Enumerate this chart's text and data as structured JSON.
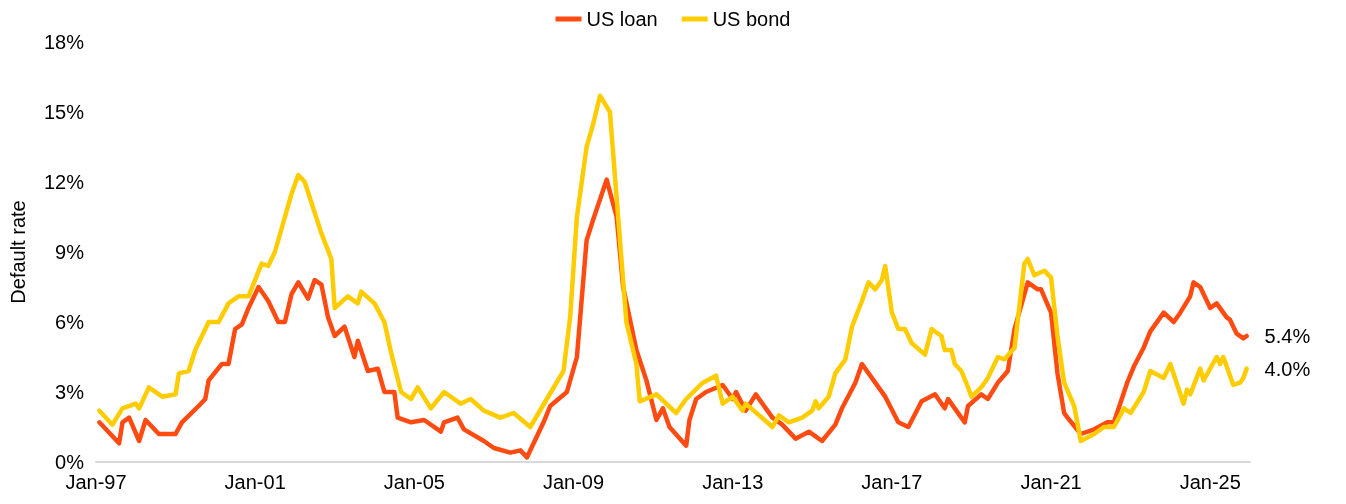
{
  "chart_data": {
    "type": "line",
    "ylabel": "Default rate",
    "legend": "top",
    "grid": false,
    "xlim": [
      "1997-01",
      "2026-01"
    ],
    "xticks": [
      {
        "value": "1997-01",
        "label": "Jan-97"
      },
      {
        "value": "2001-01",
        "label": "Jan-01"
      },
      {
        "value": "2005-01",
        "label": "Jan-05"
      },
      {
        "value": "2009-01",
        "label": "Jan-09"
      },
      {
        "value": "2013-01",
        "label": "Jan-13"
      },
      {
        "value": "2017-01",
        "label": "Jan-17"
      },
      {
        "value": "2021-01",
        "label": "Jan-21"
      },
      {
        "value": "2025-01",
        "label": "Jan-25"
      }
    ],
    "ylim": [
      0,
      18
    ],
    "yticks": [
      {
        "value": 0,
        "label": "0%"
      },
      {
        "value": 3,
        "label": "3%"
      },
      {
        "value": 6,
        "label": "6%"
      },
      {
        "value": 9,
        "label": "9%"
      },
      {
        "value": 12,
        "label": "12%"
      },
      {
        "value": 15,
        "label": "15%"
      },
      {
        "value": 18,
        "label": "18%"
      }
    ],
    "series": [
      {
        "name": "US loan",
        "color": "#ff4b12",
        "x": [
          "1997-02",
          "1997-08",
          "1997-09",
          "1997-11",
          "1998-02",
          "1998-04",
          "1998-08",
          "1999-01",
          "1999-03",
          "1999-08",
          "1999-10",
          "1999-11",
          "2000-03",
          "2000-05",
          "2000-07",
          "2000-09",
          "2000-11",
          "2001-02",
          "2001-05",
          "2001-08",
          "2001-10",
          "2001-12",
          "2002-02",
          "2002-05",
          "2002-07",
          "2002-09",
          "2002-11",
          "2003-01",
          "2003-04",
          "2003-07",
          "2003-08",
          "2003-11",
          "2004-02",
          "2004-04",
          "2004-07",
          "2004-08",
          "2004-12",
          "2005-04",
          "2005-09",
          "2005-10",
          "2006-02",
          "2006-04",
          "2006-10",
          "2007-01",
          "2007-06",
          "2007-09",
          "2007-11",
          "2008-04",
          "2008-06",
          "2008-11",
          "2009-02",
          "2009-05",
          "2009-07",
          "2009-11",
          "2010-02",
          "2010-04",
          "2010-08",
          "2010-11",
          "2011-02",
          "2011-04",
          "2011-06",
          "2011-11",
          "2011-12",
          "2012-02",
          "2012-05",
          "2012-10",
          "2013-01",
          "2013-02",
          "2013-05",
          "2013-08",
          "2014-01",
          "2014-04",
          "2014-08",
          "2014-12",
          "2015-04",
          "2015-08",
          "2015-10",
          "2016-02",
          "2016-04",
          "2016-08",
          "2016-11",
          "2017-03",
          "2017-06",
          "2017-10",
          "2018-02",
          "2018-05",
          "2018-06",
          "2018-08",
          "2018-11",
          "2018-12",
          "2019-04",
          "2019-06",
          "2019-09",
          "2019-12",
          "2020-02",
          "2020-06",
          "2020-09",
          "2020-10",
          "2021-01",
          "2021-03",
          "2021-05",
          "2021-06",
          "2021-10",
          "2022-02",
          "2022-06",
          "2022-08",
          "2022-12",
          "2023-02",
          "2023-05",
          "2023-07",
          "2023-11",
          "2024-02",
          "2024-04",
          "2024-07",
          "2024-08",
          "2024-10",
          "2025-01",
          "2025-03",
          "2025-06",
          "2025-07",
          "2025-09",
          "2025-11",
          "2025-12"
        ],
        "values": [
          1.7,
          0.8,
          1.7,
          1.9,
          0.9,
          1.8,
          1.2,
          1.2,
          1.7,
          2.4,
          2.7,
          3.5,
          4.2,
          4.2,
          5.7,
          5.9,
          6.6,
          7.5,
          6.9,
          6.0,
          6.0,
          7.2,
          7.7,
          7.0,
          7.8,
          7.6,
          6.2,
          5.4,
          5.8,
          4.5,
          5.2,
          3.9,
          4.0,
          3.0,
          3.0,
          1.9,
          1.7,
          1.8,
          1.3,
          1.7,
          1.9,
          1.4,
          0.9,
          0.6,
          0.4,
          0.5,
          0.2,
          1.7,
          2.4,
          3.0,
          4.5,
          9.5,
          10.4,
          12.1,
          10.5,
          7.5,
          4.8,
          3.5,
          1.8,
          2.3,
          1.5,
          0.7,
          1.8,
          2.7,
          3.0,
          3.3,
          2.7,
          3.0,
          2.2,
          2.9,
          1.9,
          1.6,
          1.0,
          1.3,
          0.9,
          1.6,
          2.3,
          3.4,
          4.2,
          3.4,
          2.8,
          1.7,
          1.5,
          2.6,
          2.9,
          2.3,
          2.7,
          2.3,
          1.7,
          2.4,
          2.9,
          2.7,
          3.4,
          3.9,
          5.7,
          7.7,
          7.4,
          7.4,
          6.4,
          3.8,
          2.1,
          1.9,
          1.2,
          1.4,
          1.7,
          1.7,
          3.4,
          4.1,
          4.9,
          5.6,
          6.4,
          6.0,
          6.4,
          7.1,
          7.7,
          7.5,
          6.6,
          6.8,
          6.2,
          6.1,
          5.5,
          5.3,
          5.4
        ],
        "value_labels": [
          null,
          null,
          null,
          null,
          null,
          null,
          null,
          null,
          null,
          null,
          null,
          null,
          null,
          null,
          null,
          null,
          null,
          null,
          null,
          null,
          null,
          null,
          null,
          null,
          null,
          null,
          null,
          null,
          null,
          null,
          null,
          null,
          null,
          null,
          null,
          null,
          null,
          null,
          null,
          null,
          null,
          null,
          null,
          null,
          null,
          null,
          null,
          null,
          null,
          null,
          null,
          null,
          null,
          null,
          null,
          null,
          null,
          null,
          null,
          null,
          null,
          null,
          null,
          null,
          null,
          null,
          null,
          null,
          null,
          null,
          null,
          null,
          null,
          null,
          null,
          null,
          null,
          null,
          null,
          null,
          null,
          null,
          null,
          null,
          null,
          null,
          null,
          null,
          null,
          null,
          null,
          null,
          null,
          null,
          null,
          null,
          null,
          null,
          null,
          null,
          null,
          null,
          null,
          null,
          null,
          null,
          null,
          null,
          null,
          null,
          null,
          null,
          null,
          null,
          null,
          null,
          null,
          null,
          null,
          null,
          null,
          null,
          "5.4%"
        ]
      },
      {
        "name": "US bond",
        "color": "#ffcc00",
        "x": [
          "1997-02",
          "1997-06",
          "1997-09",
          "1998-01",
          "1998-02",
          "1998-05",
          "1998-09",
          "1999-01",
          "1999-02",
          "1999-05",
          "1999-07",
          "1999-11",
          "2000-02",
          "2000-05",
          "2000-08",
          "2000-11",
          "2001-03",
          "2001-05",
          "2001-07",
          "2001-10",
          "2001-12",
          "2002-02",
          "2002-04",
          "2002-09",
          "2002-12",
          "2003-01",
          "2003-05",
          "2003-08",
          "2003-09",
          "2004-01",
          "2004-04",
          "2004-06",
          "2004-09",
          "2004-12",
          "2005-02",
          "2005-06",
          "2005-10",
          "2006-03",
          "2006-06",
          "2006-10",
          "2007-03",
          "2007-07",
          "2007-12",
          "2008-05",
          "2008-10",
          "2008-12",
          "2009-02",
          "2009-05",
          "2009-07",
          "2009-09",
          "2009-12",
          "2010-05",
          "2010-08",
          "2010-09",
          "2011-02",
          "2011-08",
          "2011-11",
          "2012-04",
          "2012-08",
          "2012-10",
          "2013-01",
          "2013-04",
          "2013-05",
          "2013-09",
          "2014-01",
          "2014-03",
          "2014-06",
          "2014-10",
          "2015-01",
          "2015-02",
          "2015-03",
          "2015-06",
          "2015-08",
          "2015-11",
          "2016-01",
          "2016-04",
          "2016-06",
          "2016-08",
          "2016-10",
          "2016-11",
          "2017-01",
          "2017-03",
          "2017-05",
          "2017-07",
          "2017-11",
          "2018-01",
          "2018-04",
          "2018-05",
          "2018-07",
          "2018-08",
          "2018-10",
          "2018-12",
          "2019-01",
          "2019-04",
          "2019-06",
          "2019-09",
          "2019-11",
          "2020-02",
          "2020-05",
          "2020-06",
          "2020-08",
          "2020-11",
          "2021-01",
          "2021-03",
          "2021-05",
          "2021-08",
          "2021-10",
          "2022-02",
          "2022-05",
          "2022-08",
          "2022-11",
          "2023-01",
          "2023-05",
          "2023-07",
          "2023-11",
          "2024-01",
          "2024-05",
          "2024-06",
          "2024-07",
          "2024-10",
          "2024-11",
          "2025-03",
          "2025-04",
          "2025-05",
          "2025-08",
          "2025-10",
          "2025-11",
          "2025-12"
        ],
        "values": [
          2.2,
          1.6,
          2.3,
          2.5,
          2.3,
          3.2,
          2.8,
          2.9,
          3.8,
          3.9,
          4.8,
          6.0,
          6.0,
          6.8,
          7.1,
          7.1,
          8.5,
          8.4,
          9.0,
          10.5,
          11.5,
          12.3,
          12.0,
          9.8,
          8.7,
          6.6,
          7.1,
          6.8,
          7.3,
          6.8,
          6.0,
          4.7,
          3.0,
          2.7,
          3.2,
          2.3,
          3.0,
          2.5,
          2.7,
          2.2,
          1.9,
          2.1,
          1.5,
          2.7,
          3.9,
          6.2,
          10.5,
          13.5,
          14.5,
          15.7,
          15.0,
          6.0,
          4.2,
          2.6,
          2.9,
          2.1,
          2.7,
          3.4,
          3.7,
          2.5,
          2.8,
          2.2,
          2.5,
          2.0,
          1.5,
          2.0,
          1.7,
          1.9,
          2.2,
          2.6,
          2.3,
          2.8,
          3.8,
          4.4,
          5.8,
          6.9,
          7.7,
          7.4,
          7.8,
          8.4,
          6.4,
          5.7,
          5.7,
          5.1,
          4.6,
          5.7,
          5.4,
          4.8,
          4.8,
          4.2,
          3.9,
          3.2,
          2.8,
          3.2,
          3.6,
          4.5,
          4.4,
          4.9,
          8.5,
          8.7,
          8.0,
          8.2,
          7.9,
          5.4,
          3.4,
          2.4,
          0.9,
          1.2,
          1.5,
          1.5,
          2.3,
          2.1,
          3.0,
          3.9,
          3.6,
          4.2,
          2.5,
          3.1,
          2.9,
          4.0,
          3.5,
          4.5,
          4.2,
          4.5,
          3.3,
          3.4,
          3.6,
          4.0
        ],
        "value_labels": [
          null,
          null,
          null,
          null,
          null,
          null,
          null,
          null,
          null,
          null,
          null,
          null,
          null,
          null,
          null,
          null,
          null,
          null,
          null,
          null,
          null,
          null,
          null,
          null,
          null,
          null,
          null,
          null,
          null,
          null,
          null,
          null,
          null,
          null,
          null,
          null,
          null,
          null,
          null,
          null,
          null,
          null,
          null,
          null,
          null,
          null,
          null,
          null,
          null,
          null,
          null,
          null,
          null,
          null,
          null,
          null,
          null,
          null,
          null,
          null,
          null,
          null,
          null,
          null,
          null,
          null,
          null,
          null,
          null,
          null,
          null,
          null,
          null,
          null,
          null,
          null,
          null,
          null,
          null,
          null,
          null,
          null,
          null,
          null,
          null,
          null,
          null,
          null,
          null,
          null,
          null,
          null,
          null,
          null,
          null,
          null,
          null,
          null,
          null,
          null,
          null,
          null,
          null,
          null,
          null,
          null,
          null,
          null,
          null,
          null,
          null,
          null,
          null,
          null,
          null,
          null,
          null,
          null,
          null,
          null,
          null,
          null,
          null,
          null,
          null,
          null,
          null,
          "4.0%"
        ]
      }
    ]
  }
}
